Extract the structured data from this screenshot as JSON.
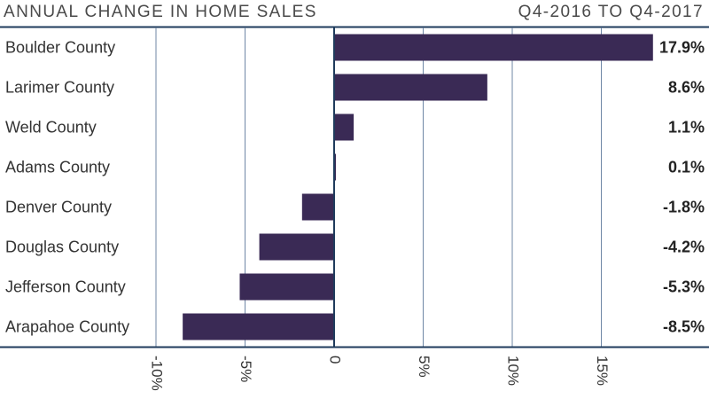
{
  "header": {
    "title": "ANNUAL CHANGE IN HOME SALES",
    "period": "Q4-2016 TO Q4-2017"
  },
  "colors": {
    "bar": "#3a2a55",
    "axis_line": "#1f3b5c",
    "grid": "#6f87a6",
    "label_text": "#333333",
    "value_text": "#222222"
  },
  "chart_data": {
    "type": "bar",
    "orientation": "horizontal",
    "title": "ANNUAL CHANGE IN HOME SALES",
    "subtitle": "Q4-2016 TO Q4-2017",
    "categories": [
      "Boulder County",
      "Larimer County",
      "Weld County",
      "Adams County",
      "Denver County",
      "Douglas County",
      "Jefferson County",
      "Arapahoe County"
    ],
    "values": [
      17.9,
      8.6,
      1.1,
      0.1,
      -1.8,
      -4.2,
      -5.3,
      -8.5
    ],
    "value_labels": [
      "17.9%",
      "8.6%",
      "1.1%",
      "0.1%",
      "-1.8%",
      "-4.2%",
      "-5.3%",
      "-8.5%"
    ],
    "xlim": [
      -10,
      18
    ],
    "xticks": [
      -10,
      -5,
      0,
      5,
      10,
      15
    ],
    "xtick_labels": [
      "-10%",
      "-5%",
      "0",
      "5%",
      "10%",
      "15%"
    ],
    "grid": true,
    "legend": "none"
  }
}
